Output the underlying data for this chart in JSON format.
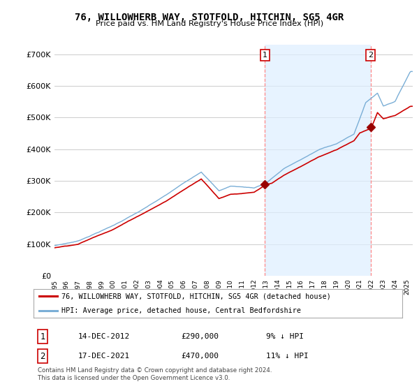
{
  "title": "76, WILLOWHERB WAY, STOTFOLD, HITCHIN, SG5 4GR",
  "subtitle": "Price paid vs. HM Land Registry's House Price Index (HPI)",
  "ylabel_ticks": [
    "£0",
    "£100K",
    "£200K",
    "£300K",
    "£400K",
    "£500K",
    "£600K",
    "£700K"
  ],
  "ytick_values": [
    0,
    100000,
    200000,
    300000,
    400000,
    500000,
    600000,
    700000
  ],
  "ylim": [
    0,
    730000
  ],
  "xlim_start": 1995,
  "xlim_end": 2025.5,
  "point1_year": 2012.958,
  "point1_price": 290000,
  "point2_year": 2021.958,
  "point2_price": 470000,
  "point1_label": "1",
  "point2_label": "2",
  "point1_date": "14-DEC-2012",
  "point2_date": "17-DEC-2021",
  "point1_hpi": "9% ↓ HPI",
  "point2_hpi": "11% ↓ HPI",
  "legend_label_red": "76, WILLOWHERB WAY, STOTFOLD, HITCHIN, SG5 4GR (detached house)",
  "legend_label_blue": "HPI: Average price, detached house, Central Bedfordshire",
  "footnote": "Contains HM Land Registry data © Crown copyright and database right 2024.\nThis data is licensed under the Open Government Licence v3.0.",
  "red_color": "#cc0000",
  "blue_color": "#7aaed6",
  "blue_fill_color": "#ddeeff",
  "dashed_color": "#ff8888",
  "grid_color": "#cccccc",
  "bg_color": "#ffffff",
  "annotation_box_color": "#cc0000",
  "marker_color": "#990000"
}
